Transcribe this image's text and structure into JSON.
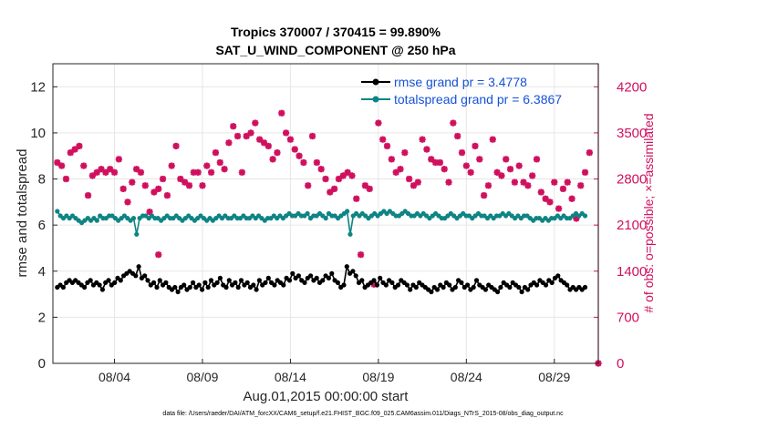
{
  "chart_data": {
    "type": "line",
    "title_line1": "Tropics 370007 / 370415 = 99.890%",
    "title_line2": "SAT_U_WIND_COMPONENT @ 250 hPa",
    "xlabel": "Aug.01,2015 00:00:00 start",
    "ylabel_left": "rmse and totalspread",
    "ylabel_right": "# of obs: o=possible; ×=assimilated",
    "footnote": "data file: /Users/raeder/DAI/ATM_forcXX/CAM6_setup/f.e21.FHIST_BGC.f09_025.CAM6assim.011/Diags_NTrS_2015-08/obs_diag_output.nc",
    "x_range_days": [
      0.5,
      31.5
    ],
    "ylim_left": [
      0,
      13
    ],
    "ylim_right": [
      0,
      4550
    ],
    "xticks": [
      {
        "day": 4,
        "label": "08/04"
      },
      {
        "day": 9,
        "label": "08/09"
      },
      {
        "day": 14,
        "label": "08/14"
      },
      {
        "day": 19,
        "label": "08/19"
      },
      {
        "day": 24,
        "label": "08/24"
      },
      {
        "day": 29,
        "label": "08/29"
      }
    ],
    "yticks_left": [
      0,
      2,
      4,
      6,
      8,
      10,
      12
    ],
    "yticks_right": [
      0,
      700,
      1400,
      2100,
      2800,
      3500,
      4200
    ],
    "colors": {
      "rmse": "#000000",
      "spread": "#0f8484",
      "obs": "#d0105e",
      "legend_text": "#1552d6"
    },
    "series": [
      {
        "name": "rmse grand pr = 3.4778",
        "axis": "left",
        "values": [
          3.3,
          3.4,
          3.3,
          3.5,
          3.6,
          3.5,
          3.6,
          3.5,
          3.4,
          3.3,
          3.5,
          3.6,
          3.4,
          3.5,
          3.4,
          3.2,
          3.5,
          3.6,
          3.4,
          3.5,
          3.7,
          3.6,
          3.8,
          3.9,
          4.0,
          3.9,
          3.8,
          4.2,
          3.7,
          3.8,
          3.6,
          3.4,
          3.5,
          3.3,
          3.6,
          3.4,
          3.5,
          3.3,
          3.2,
          3.3,
          3.1,
          3.3,
          3.4,
          3.2,
          3.3,
          3.5,
          3.3,
          3.4,
          3.2,
          3.5,
          3.3,
          3.6,
          3.4,
          3.5,
          3.7,
          3.4,
          3.3,
          3.6,
          3.4,
          3.5,
          3.3,
          3.6,
          3.4,
          3.5,
          3.3,
          3.4,
          3.2,
          3.6,
          3.4,
          3.5,
          3.7,
          3.5,
          3.4,
          3.6,
          3.5,
          3.4,
          3.7,
          3.6,
          3.9,
          3.7,
          3.8,
          3.6,
          3.5,
          3.7,
          3.8,
          3.6,
          3.7,
          3.5,
          3.6,
          3.8,
          3.7,
          3.9,
          3.6,
          3.5,
          3.3,
          3.4,
          4.2,
          3.9,
          4.0,
          3.8,
          3.5,
          3.6,
          3.3,
          3.4,
          3.5,
          3.6,
          3.4,
          3.7,
          3.5,
          3.4,
          3.6,
          3.5,
          3.3,
          3.4,
          3.6,
          3.5,
          3.4,
          3.2,
          3.4,
          3.3,
          3.5,
          3.4,
          3.3,
          3.2,
          3.1,
          3.3,
          3.2,
          3.4,
          3.3,
          3.5,
          3.4,
          3.2,
          3.3,
          3.6,
          3.5,
          3.3,
          3.4,
          3.2,
          3.3,
          3.6,
          3.4,
          3.3,
          3.2,
          3.4,
          3.3,
          3.2,
          3.1,
          3.3,
          3.5,
          3.4,
          3.3,
          3.5,
          3.4,
          3.3,
          3.1,
          3.3,
          3.2,
          3.4,
          3.5,
          3.4,
          3.6,
          3.5,
          3.4,
          3.6,
          3.5,
          3.7,
          3.8,
          3.6,
          3.5,
          3.4,
          3.2,
          3.3,
          3.2,
          3.3,
          3.2,
          3.3
        ]
      },
      {
        "name": "totalspread grand pr = 6.3867",
        "axis": "left",
        "values": [
          6.6,
          6.4,
          6.3,
          6.4,
          6.3,
          6.4,
          6.3,
          6.2,
          6.1,
          6.2,
          6.3,
          6.2,
          6.3,
          6.2,
          6.4,
          6.3,
          6.3,
          6.4,
          6.4,
          6.3,
          6.2,
          6.3,
          6.4,
          6.3,
          6.2,
          6.3,
          5.6,
          6.3,
          6.4,
          6.4,
          6.3,
          6.4,
          6.3,
          6.3,
          6.2,
          6.3,
          6.4,
          6.3,
          6.3,
          6.4,
          6.3,
          6.2,
          6.3,
          6.4,
          6.3,
          6.2,
          6.3,
          6.4,
          6.3,
          6.2,
          6.3,
          6.2,
          6.3,
          6.4,
          6.3,
          6.4,
          6.3,
          6.3,
          6.4,
          6.3,
          6.3,
          6.4,
          6.3,
          6.3,
          6.4,
          6.3,
          6.4,
          6.3,
          6.2,
          6.3,
          6.3,
          6.4,
          6.3,
          6.4,
          6.3,
          6.4,
          6.5,
          6.4,
          6.4,
          6.5,
          6.4,
          6.4,
          6.5,
          6.3,
          6.4,
          6.4,
          6.5,
          6.4,
          6.3,
          6.5,
          6.4,
          6.4,
          6.3,
          6.4,
          6.5,
          6.6,
          5.6,
          6.4,
          6.5,
          6.4,
          6.5,
          6.4,
          6.3,
          6.4,
          6.5,
          6.4,
          6.5,
          6.6,
          6.5,
          6.6,
          6.5,
          6.4,
          6.4,
          6.5,
          6.6,
          6.5,
          6.4,
          6.4,
          6.5,
          6.4,
          6.5,
          6.4,
          6.3,
          6.4,
          6.5,
          6.4,
          6.3,
          6.3,
          6.4,
          6.5,
          6.4,
          6.3,
          6.4,
          6.5,
          6.4,
          6.4,
          6.3,
          6.4,
          6.5,
          6.4,
          6.4,
          6.3,
          6.4,
          6.3,
          6.4,
          6.4,
          6.5,
          6.4,
          6.5,
          6.4,
          6.3,
          6.4,
          6.3,
          6.4,
          6.4,
          6.3,
          6.2,
          6.3,
          6.3,
          6.2,
          6.3,
          6.2,
          6.3,
          6.3,
          6.4,
          6.3,
          6.4,
          6.3,
          6.3,
          6.4,
          6.5,
          6.4,
          6.5,
          6.4
        ]
      },
      {
        "name": "obs count",
        "axis": "right",
        "pairs": [
          [
            0.75,
            3050
          ],
          [
            1.0,
            3000
          ],
          [
            1.25,
            2800
          ],
          [
            1.5,
            3200
          ],
          [
            1.75,
            3250
          ],
          [
            2.0,
            3300
          ],
          [
            2.25,
            3000
          ],
          [
            2.5,
            2550
          ],
          [
            2.75,
            2850
          ],
          [
            3.0,
            2900
          ],
          [
            3.25,
            2950
          ],
          [
            3.5,
            2900
          ],
          [
            3.75,
            2950
          ],
          [
            4.0,
            2900
          ],
          [
            4.25,
            3100
          ],
          [
            4.5,
            2650
          ],
          [
            4.75,
            2450
          ],
          [
            5.0,
            2750
          ],
          [
            5.25,
            2950
          ],
          [
            5.5,
            2900
          ],
          [
            5.75,
            2700
          ],
          [
            6.0,
            2300
          ],
          [
            6.25,
            2600
          ],
          [
            6.5,
            2650
          ],
          [
            6.5,
            1650
          ],
          [
            6.75,
            2800
          ],
          [
            7.0,
            2550
          ],
          [
            7.25,
            3000
          ],
          [
            7.5,
            3300
          ],
          [
            7.75,
            2800
          ],
          [
            8.0,
            2750
          ],
          [
            8.25,
            2700
          ],
          [
            8.5,
            2900
          ],
          [
            8.75,
            2900
          ],
          [
            9.0,
            2700
          ],
          [
            9.25,
            3000
          ],
          [
            9.5,
            2900
          ],
          [
            9.75,
            3200
          ],
          [
            10.0,
            3050
          ],
          [
            10.25,
            2950
          ],
          [
            10.5,
            3350
          ],
          [
            10.75,
            3600
          ],
          [
            11.0,
            3450
          ],
          [
            11.25,
            2900
          ],
          [
            11.5,
            3450
          ],
          [
            11.75,
            3500
          ],
          [
            12.0,
            3650
          ],
          [
            12.25,
            3400
          ],
          [
            12.5,
            3350
          ],
          [
            12.75,
            3300
          ],
          [
            13.0,
            3100
          ],
          [
            13.25,
            3200
          ],
          [
            13.5,
            3800
          ],
          [
            13.75,
            3500
          ],
          [
            14.0,
            3400
          ],
          [
            14.25,
            3250
          ],
          [
            14.5,
            3150
          ],
          [
            14.75,
            3050
          ],
          [
            15.0,
            2700
          ],
          [
            15.25,
            3450
          ],
          [
            15.5,
            3050
          ],
          [
            15.75,
            2950
          ],
          [
            16.0,
            2800
          ],
          [
            16.25,
            2600
          ],
          [
            16.5,
            2650
          ],
          [
            16.75,
            2800
          ],
          [
            17.0,
            2850
          ],
          [
            17.25,
            2900
          ],
          [
            17.5,
            2850
          ],
          [
            17.75,
            2500
          ],
          [
            18.0,
            1650
          ],
          [
            18.25,
            2700
          ],
          [
            18.5,
            2650
          ],
          [
            18.75,
            1200
          ],
          [
            19.0,
            3650
          ],
          [
            19.25,
            3400
          ],
          [
            19.5,
            3300
          ],
          [
            19.75,
            3100
          ],
          [
            20.0,
            2900
          ],
          [
            20.25,
            2950
          ],
          [
            20.5,
            3200
          ],
          [
            20.75,
            2800
          ],
          [
            21.0,
            2700
          ],
          [
            21.25,
            2750
          ],
          [
            21.5,
            3400
          ],
          [
            21.75,
            3250
          ],
          [
            22.0,
            3100
          ],
          [
            22.25,
            3050
          ],
          [
            22.5,
            3050
          ],
          [
            22.75,
            2950
          ],
          [
            23.0,
            2750
          ],
          [
            23.25,
            3650
          ],
          [
            23.5,
            3450
          ],
          [
            23.75,
            3200
          ],
          [
            24.0,
            3000
          ],
          [
            24.25,
            2900
          ],
          [
            24.5,
            3300
          ],
          [
            24.75,
            3100
          ],
          [
            25.0,
            2550
          ],
          [
            25.25,
            2700
          ],
          [
            25.5,
            3400
          ],
          [
            25.75,
            2900
          ],
          [
            26.0,
            2850
          ],
          [
            26.25,
            3100
          ],
          [
            26.5,
            2950
          ],
          [
            26.75,
            2750
          ],
          [
            27.0,
            3000
          ],
          [
            27.25,
            2750
          ],
          [
            27.5,
            2700
          ],
          [
            27.75,
            2850
          ],
          [
            28.0,
            3100
          ],
          [
            28.25,
            2600
          ],
          [
            28.5,
            2500
          ],
          [
            28.75,
            2450
          ],
          [
            29.0,
            2750
          ],
          [
            29.25,
            2350
          ],
          [
            29.5,
            2650
          ],
          [
            29.75,
            2750
          ],
          [
            30.0,
            2500
          ],
          [
            30.25,
            2200
          ],
          [
            30.5,
            2700
          ],
          [
            30.75,
            2900
          ],
          [
            31.0,
            3200
          ],
          [
            31.5,
            0
          ]
        ]
      }
    ]
  }
}
